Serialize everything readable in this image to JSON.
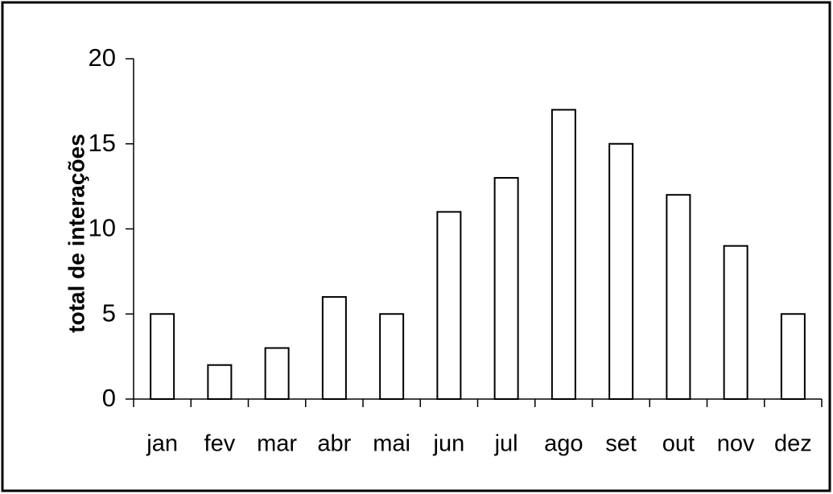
{
  "chart_data": {
    "type": "bar",
    "y_label": "total de interações",
    "categories": [
      "jan",
      "fev",
      "mar",
      "abr",
      "mai",
      "jun",
      "jul",
      "ago",
      "set",
      "out",
      "nov",
      "dez"
    ],
    "values": [
      5,
      2,
      3,
      6,
      5,
      11,
      13,
      17,
      15,
      12,
      9,
      5
    ],
    "color": "#ffffff",
    "ylim": [
      0,
      20
    ],
    "yticks": [
      0,
      5,
      10,
      15,
      20
    ],
    "grid": false
  }
}
